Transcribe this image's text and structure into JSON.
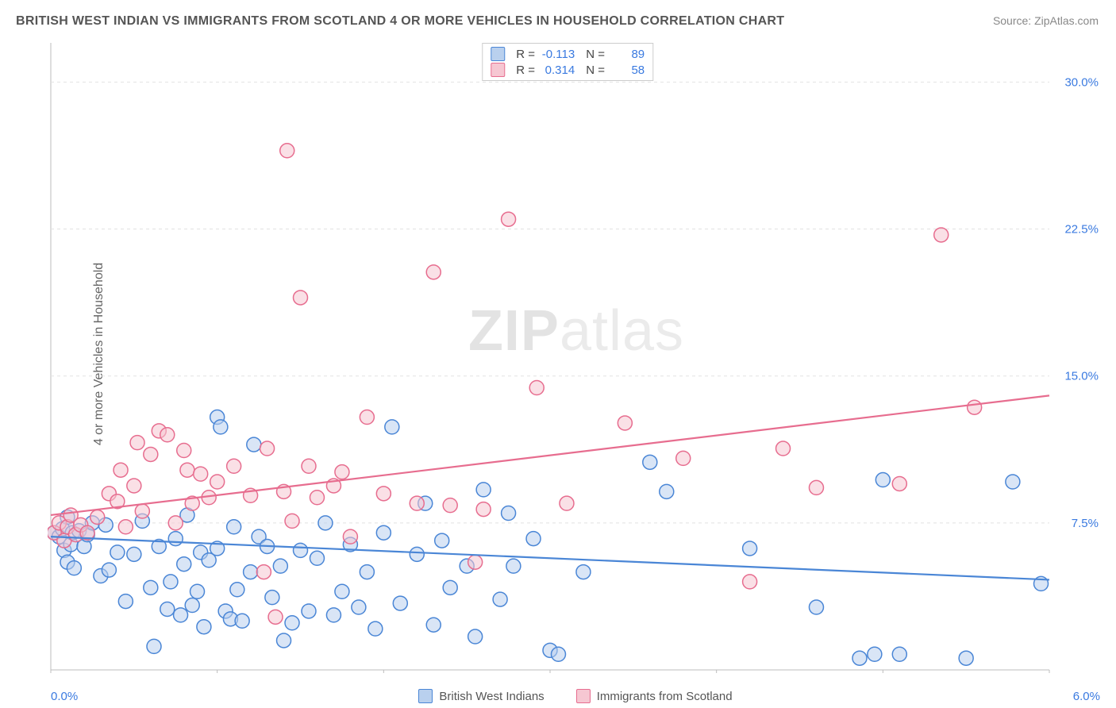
{
  "title": "BRITISH WEST INDIAN VS IMMIGRANTS FROM SCOTLAND 4 OR MORE VEHICLES IN HOUSEHOLD CORRELATION CHART",
  "source": "Source: ZipAtlas.com",
  "watermark_a": "ZIP",
  "watermark_b": "atlas",
  "y_axis_label": "4 or more Vehicles in Household",
  "chart": {
    "type": "scatter",
    "background_color": "#ffffff",
    "grid_color": "#e2e2e2",
    "border_color": "#bdbdbd",
    "xlim": [
      0.0,
      6.0
    ],
    "ylim": [
      0.0,
      32.0
    ],
    "x_ticks": [
      0.0,
      1.0,
      2.0,
      3.0,
      4.0,
      5.0,
      6.0
    ],
    "x_tick_labels": {
      "first": "0.0%",
      "last": "6.0%"
    },
    "y_ticks": [
      7.5,
      15.0,
      22.5,
      30.0
    ],
    "y_tick_labels": [
      "7.5%",
      "15.0%",
      "22.5%",
      "30.0%"
    ],
    "y_tick_color": "#3a7ae0",
    "marker_radius": 9,
    "marker_stroke_width": 1.5,
    "line_width": 2.2,
    "series": [
      {
        "name": "British West Indians",
        "fill": "#b9d0ee",
        "stroke": "#4a86d6",
        "fill_opacity": 0.55,
        "r": -0.113,
        "n": 89,
        "trend": {
          "x1": 0.0,
          "y1": 6.8,
          "x2": 6.0,
          "y2": 4.6
        },
        "points": [
          [
            0.02,
            7.0
          ],
          [
            0.05,
            6.8
          ],
          [
            0.07,
            7.2
          ],
          [
            0.08,
            6.1
          ],
          [
            0.1,
            5.5
          ],
          [
            0.1,
            7.8
          ],
          [
            0.12,
            6.4
          ],
          [
            0.13,
            7.0
          ],
          [
            0.14,
            5.2
          ],
          [
            0.17,
            7.1
          ],
          [
            0.2,
            6.3
          ],
          [
            0.22,
            6.9
          ],
          [
            0.25,
            7.5
          ],
          [
            0.3,
            4.8
          ],
          [
            0.33,
            7.4
          ],
          [
            0.35,
            5.1
          ],
          [
            0.4,
            6.0
          ],
          [
            0.45,
            3.5
          ],
          [
            0.5,
            5.9
          ],
          [
            0.55,
            7.6
          ],
          [
            0.6,
            4.2
          ],
          [
            0.62,
            1.2
          ],
          [
            0.65,
            6.3
          ],
          [
            0.7,
            3.1
          ],
          [
            0.72,
            4.5
          ],
          [
            0.75,
            6.7
          ],
          [
            0.78,
            2.8
          ],
          [
            0.8,
            5.4
          ],
          [
            0.82,
            7.9
          ],
          [
            0.85,
            3.3
          ],
          [
            0.88,
            4.0
          ],
          [
            0.9,
            6.0
          ],
          [
            0.92,
            2.2
          ],
          [
            0.95,
            5.6
          ],
          [
            1.0,
            12.9
          ],
          [
            1.0,
            6.2
          ],
          [
            1.02,
            12.4
          ],
          [
            1.05,
            3.0
          ],
          [
            1.08,
            2.6
          ],
          [
            1.1,
            7.3
          ],
          [
            1.12,
            4.1
          ],
          [
            1.15,
            2.5
          ],
          [
            1.2,
            5.0
          ],
          [
            1.22,
            11.5
          ],
          [
            1.25,
            6.8
          ],
          [
            1.3,
            6.3
          ],
          [
            1.33,
            3.7
          ],
          [
            1.38,
            5.3
          ],
          [
            1.4,
            1.5
          ],
          [
            1.45,
            2.4
          ],
          [
            1.5,
            6.1
          ],
          [
            1.55,
            3.0
          ],
          [
            1.6,
            5.7
          ],
          [
            1.65,
            7.5
          ],
          [
            1.7,
            2.8
          ],
          [
            1.75,
            4.0
          ],
          [
            1.8,
            6.4
          ],
          [
            1.85,
            3.2
          ],
          [
            1.9,
            5.0
          ],
          [
            1.95,
            2.1
          ],
          [
            2.0,
            7.0
          ],
          [
            2.05,
            12.4
          ],
          [
            2.1,
            3.4
          ],
          [
            2.2,
            5.9
          ],
          [
            2.25,
            8.5
          ],
          [
            2.3,
            2.3
          ],
          [
            2.35,
            6.6
          ],
          [
            2.4,
            4.2
          ],
          [
            2.5,
            5.3
          ],
          [
            2.55,
            1.7
          ],
          [
            2.6,
            9.2
          ],
          [
            2.7,
            3.6
          ],
          [
            2.75,
            8.0
          ],
          [
            2.78,
            5.3
          ],
          [
            2.9,
            6.7
          ],
          [
            3.0,
            1.0
          ],
          [
            3.05,
            0.8
          ],
          [
            3.2,
            5.0
          ],
          [
            3.6,
            10.6
          ],
          [
            3.7,
            9.1
          ],
          [
            4.2,
            6.2
          ],
          [
            4.6,
            3.2
          ],
          [
            4.86,
            0.6
          ],
          [
            4.95,
            0.8
          ],
          [
            5.0,
            9.7
          ],
          [
            5.1,
            0.8
          ],
          [
            5.5,
            0.6
          ],
          [
            5.78,
            9.6
          ],
          [
            5.95,
            4.4
          ]
        ]
      },
      {
        "name": "Immigrants from Scotland",
        "fill": "#f6c7d2",
        "stroke": "#e76d8f",
        "fill_opacity": 0.55,
        "r": 0.314,
        "n": 58,
        "trend": {
          "x1": 0.0,
          "y1": 7.9,
          "x2": 6.0,
          "y2": 14.0
        },
        "points": [
          [
            0.02,
            7.0
          ],
          [
            0.05,
            7.5
          ],
          [
            0.08,
            6.6
          ],
          [
            0.1,
            7.3
          ],
          [
            0.12,
            7.9
          ],
          [
            0.15,
            6.9
          ],
          [
            0.18,
            7.4
          ],
          [
            0.22,
            7.0
          ],
          [
            0.28,
            7.8
          ],
          [
            0.35,
            9.0
          ],
          [
            0.4,
            8.6
          ],
          [
            0.42,
            10.2
          ],
          [
            0.45,
            7.3
          ],
          [
            0.5,
            9.4
          ],
          [
            0.52,
            11.6
          ],
          [
            0.55,
            8.1
          ],
          [
            0.6,
            11.0
          ],
          [
            0.65,
            12.2
          ],
          [
            0.7,
            12.0
          ],
          [
            0.75,
            7.5
          ],
          [
            0.8,
            11.2
          ],
          [
            0.82,
            10.2
          ],
          [
            0.85,
            8.5
          ],
          [
            0.9,
            10.0
          ],
          [
            0.95,
            8.8
          ],
          [
            1.0,
            9.6
          ],
          [
            1.1,
            10.4
          ],
          [
            1.2,
            8.9
          ],
          [
            1.28,
            5.0
          ],
          [
            1.3,
            11.3
          ],
          [
            1.35,
            2.7
          ],
          [
            1.4,
            9.1
          ],
          [
            1.42,
            26.5
          ],
          [
            1.45,
            7.6
          ],
          [
            1.5,
            19.0
          ],
          [
            1.55,
            10.4
          ],
          [
            1.6,
            8.8
          ],
          [
            1.7,
            9.4
          ],
          [
            1.75,
            10.1
          ],
          [
            1.8,
            6.8
          ],
          [
            1.9,
            12.9
          ],
          [
            2.0,
            9.0
          ],
          [
            2.2,
            8.5
          ],
          [
            2.3,
            20.3
          ],
          [
            2.4,
            8.4
          ],
          [
            2.55,
            5.5
          ],
          [
            2.6,
            8.2
          ],
          [
            2.75,
            23.0
          ],
          [
            2.92,
            14.4
          ],
          [
            3.1,
            8.5
          ],
          [
            3.45,
            12.6
          ],
          [
            3.8,
            10.8
          ],
          [
            4.2,
            4.5
          ],
          [
            4.4,
            11.3
          ],
          [
            4.6,
            9.3
          ],
          [
            5.1,
            9.5
          ],
          [
            5.35,
            22.2
          ],
          [
            5.55,
            13.4
          ]
        ]
      }
    ]
  },
  "stats_box": {
    "rows": [
      {
        "swatch_fill": "#b9d0ee",
        "swatch_stroke": "#4a86d6",
        "r_label": "R =",
        "r": "-0.113",
        "n_label": "N =",
        "n": "89"
      },
      {
        "swatch_fill": "#f6c7d2",
        "swatch_stroke": "#e76d8f",
        "r_label": "R =",
        "r": "0.314",
        "n_label": "N =",
        "n": "58"
      }
    ]
  },
  "legend": [
    {
      "label": "British West Indians",
      "fill": "#b9d0ee",
      "stroke": "#4a86d6"
    },
    {
      "label": "Immigrants from Scotland",
      "fill": "#f6c7d2",
      "stroke": "#e76d8f"
    }
  ]
}
